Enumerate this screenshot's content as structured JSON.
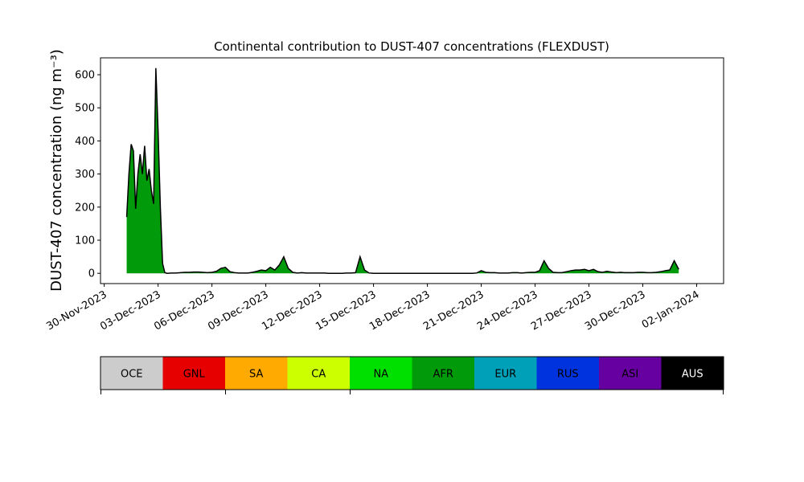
{
  "chart_data": {
    "type": "area",
    "title": "Continental contribution to DUST-407 concentrations (FLEXDUST)",
    "y_label": "DUST-407 concentration (ng m⁻³)",
    "x": [
      "2023-12-01T06:00",
      "2023-12-01T09:00",
      "2023-12-01T12:00",
      "2023-12-01T15:00",
      "2023-12-01T18:00",
      "2023-12-01T21:00",
      "2023-12-02T00:00",
      "2023-12-02T03:00",
      "2023-12-02T06:00",
      "2023-12-02T09:00",
      "2023-12-02T12:00",
      "2023-12-02T15:00",
      "2023-12-02T18:00",
      "2023-12-02T21:00",
      "2023-12-03T00:00",
      "2023-12-03T03:00",
      "2023-12-03T06:00",
      "2023-12-03T09:00",
      "2023-12-03T12:00",
      "2023-12-03T18:00",
      "2023-12-04T00:00",
      "2023-12-04T06:00",
      "2023-12-04T12:00",
      "2023-12-04T18:00",
      "2023-12-05T00:00",
      "2023-12-05T06:00",
      "2023-12-05T12:00",
      "2023-12-05T18:00",
      "2023-12-06T00:00",
      "2023-12-06T06:00",
      "2023-12-06T12:00",
      "2023-12-06T18:00",
      "2023-12-07T00:00",
      "2023-12-07T06:00",
      "2023-12-07T12:00",
      "2023-12-07T18:00",
      "2023-12-08T00:00",
      "2023-12-08T06:00",
      "2023-12-08T12:00",
      "2023-12-08T18:00",
      "2023-12-09T00:00",
      "2023-12-09T06:00",
      "2023-12-09T12:00",
      "2023-12-09T18:00",
      "2023-12-10T00:00",
      "2023-12-10T06:00",
      "2023-12-10T12:00",
      "2023-12-10T18:00",
      "2023-12-11T00:00",
      "2023-12-11T06:00",
      "2023-12-11T12:00",
      "2023-12-11T18:00",
      "2023-12-12T00:00",
      "2023-12-12T06:00",
      "2023-12-12T12:00",
      "2023-12-12T18:00",
      "2023-12-13T00:00",
      "2023-12-13T06:00",
      "2023-12-13T12:00",
      "2023-12-13T18:00",
      "2023-12-14T00:00",
      "2023-12-14T06:00",
      "2023-12-14T12:00",
      "2023-12-14T18:00",
      "2023-12-15T00:00",
      "2023-12-15T06:00",
      "2023-12-15T12:00",
      "2023-12-15T18:00",
      "2023-12-16T00:00",
      "2023-12-16T06:00",
      "2023-12-16T12:00",
      "2023-12-16T18:00",
      "2023-12-17T00:00",
      "2023-12-17T06:00",
      "2023-12-17T12:00",
      "2023-12-17T18:00",
      "2023-12-18T00:00",
      "2023-12-18T06:00",
      "2023-12-18T12:00",
      "2023-12-18T18:00",
      "2023-12-19T00:00",
      "2023-12-19T06:00",
      "2023-12-19T12:00",
      "2023-12-19T18:00",
      "2023-12-20T00:00",
      "2023-12-20T06:00",
      "2023-12-20T12:00",
      "2023-12-20T18:00",
      "2023-12-21T00:00",
      "2023-12-21T06:00",
      "2023-12-21T12:00",
      "2023-12-21T18:00",
      "2023-12-22T00:00",
      "2023-12-22T06:00",
      "2023-12-22T12:00",
      "2023-12-22T18:00",
      "2023-12-23T00:00",
      "2023-12-23T06:00",
      "2023-12-23T12:00",
      "2023-12-23T18:00",
      "2023-12-24T00:00",
      "2023-12-24T06:00",
      "2023-12-24T12:00",
      "2023-12-24T18:00",
      "2023-12-25T00:00",
      "2023-12-25T06:00",
      "2023-12-25T12:00",
      "2023-12-25T18:00",
      "2023-12-26T00:00",
      "2023-12-26T06:00",
      "2023-12-26T12:00",
      "2023-12-26T18:00",
      "2023-12-27T00:00",
      "2023-12-27T06:00",
      "2023-12-27T12:00",
      "2023-12-27T18:00",
      "2023-12-28T00:00",
      "2023-12-28T06:00",
      "2023-12-28T12:00",
      "2023-12-28T18:00",
      "2023-12-29T00:00",
      "2023-12-29T06:00",
      "2023-12-29T12:00",
      "2023-12-29T18:00",
      "2023-12-30T00:00",
      "2023-12-30T06:00",
      "2023-12-30T12:00",
      "2023-12-30T18:00",
      "2023-12-31T00:00",
      "2023-12-31T06:00",
      "2023-12-31T12:00",
      "2023-12-31T18:00",
      "2024-01-01T00:00"
    ],
    "series": [
      {
        "name": "AFR",
        "color": "#009a0a",
        "outline_color": "#000000",
        "values": [
          170,
          300,
          390,
          370,
          195,
          300,
          360,
          300,
          385,
          280,
          315,
          250,
          210,
          620,
          430,
          200,
          30,
          2,
          0,
          1,
          1,
          2,
          3,
          3,
          4,
          4,
          3,
          2,
          3,
          6,
          15,
          18,
          5,
          2,
          1,
          1,
          1,
          3,
          6,
          10,
          8,
          18,
          10,
          25,
          50,
          15,
          3,
          1,
          2,
          1,
          1,
          1,
          1,
          1,
          0,
          0,
          0,
          0,
          1,
          1,
          2,
          50,
          10,
          1,
          0,
          0,
          0,
          0,
          0,
          0,
          0,
          0,
          0,
          0,
          0,
          0,
          0,
          0,
          0,
          0,
          0,
          0,
          0,
          0,
          0,
          0,
          0,
          1,
          8,
          3,
          2,
          2,
          1,
          1,
          1,
          2,
          2,
          1,
          2,
          3,
          3,
          8,
          38,
          15,
          3,
          2,
          2,
          5,
          8,
          10,
          10,
          12,
          8,
          12,
          5,
          3,
          6,
          4,
          2,
          3,
          2,
          2,
          2,
          3,
          3,
          2,
          2,
          3,
          5,
          8,
          10,
          38,
          12
        ]
      }
    ],
    "xlim": [
      "2023-11-29T19:00",
      "2024-01-03T12:00"
    ],
    "xticks": [
      {
        "value": "2023-11-30T00:00",
        "label": "30-Nov-2023"
      },
      {
        "value": "2023-12-03T00:00",
        "label": "03-Dec-2023"
      },
      {
        "value": "2023-12-06T00:00",
        "label": "06-Dec-2023"
      },
      {
        "value": "2023-12-09T00:00",
        "label": "09-Dec-2023"
      },
      {
        "value": "2023-12-12T00:00",
        "label": "12-Dec-2023"
      },
      {
        "value": "2023-12-15T00:00",
        "label": "15-Dec-2023"
      },
      {
        "value": "2023-12-18T00:00",
        "label": "18-Dec-2023"
      },
      {
        "value": "2023-12-21T00:00",
        "label": "21-Dec-2023"
      },
      {
        "value": "2023-12-24T00:00",
        "label": "24-Dec-2023"
      },
      {
        "value": "2023-12-27T00:00",
        "label": "27-Dec-2023"
      },
      {
        "value": "2023-12-30T00:00",
        "label": "30-Dec-2023"
      },
      {
        "value": "2024-01-02T00:00",
        "label": "02-Jan-2024"
      }
    ],
    "ylim": [
      -31,
      651
    ],
    "yticks": [
      0,
      100,
      200,
      300,
      400,
      500,
      600
    ],
    "colorbar": {
      "labels": [
        "OCE",
        "GNL",
        "SA",
        "CA",
        "NA",
        "AFR",
        "EUR",
        "RUS",
        "ASI",
        "AUS"
      ],
      "colors": [
        "#cccccc",
        "#e60000",
        "#ffaa00",
        "#ccff00",
        "#00e000",
        "#009a0a",
        "#00a0b8",
        "#0033dd",
        "#6600a0",
        "#000000"
      ]
    }
  }
}
